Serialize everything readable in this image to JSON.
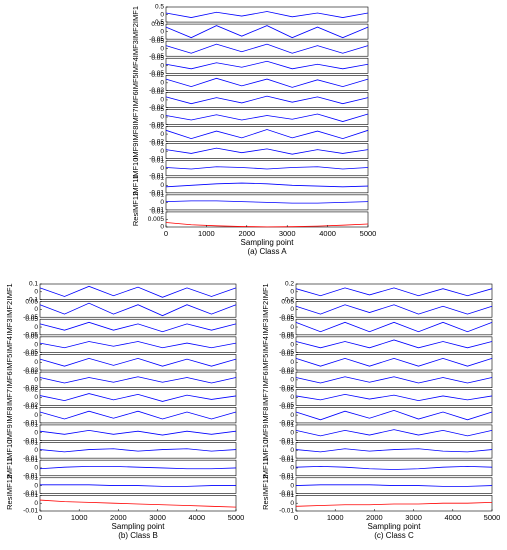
{
  "chart_data": [
    {
      "type": "line",
      "xlabel": "Sampling point",
      "caption": "(a) Class A",
      "x": [
        0,
        625,
        1250,
        1875,
        2500,
        3125,
        3750,
        4375,
        5000
      ],
      "xlim": [
        0,
        5000
      ],
      "xticks": [
        0,
        1000,
        2000,
        3000,
        4000,
        5000
      ],
      "series": [
        {
          "name": "IMF1",
          "color": "#0000ff",
          "ylim": [
            -0.5,
            0.5
          ],
          "yticks": [
            -0.5,
            0,
            0.5
          ],
          "values": [
            0.1,
            -0.2,
            0.15,
            -0.1,
            0.2,
            -0.15,
            0.1,
            -0.2,
            0.1
          ]
        },
        {
          "name": "IMF2",
          "color": "#0000ff",
          "ylim": [
            -0.05,
            0.05
          ],
          "yticks": [
            -0.05,
            0,
            0.05
          ],
          "values": [
            0.03,
            -0.04,
            0.04,
            -0.03,
            0.04,
            -0.04,
            0.03,
            -0.04,
            0.03
          ]
        },
        {
          "name": "IMF3",
          "color": "#0000ff",
          "ylim": [
            -0.05,
            0.05
          ],
          "yticks": [
            -0.05,
            0,
            0.05
          ],
          "values": [
            0.02,
            -0.03,
            0.03,
            -0.02,
            0.03,
            -0.03,
            0.02,
            -0.03,
            0.02
          ]
        },
        {
          "name": "IMF4",
          "color": "#0000ff",
          "ylim": [
            -0.05,
            0.05
          ],
          "yticks": [
            -0.05,
            0,
            0.05
          ],
          "values": [
            0.01,
            -0.02,
            0.02,
            -0.01,
            0.03,
            -0.02,
            0.01,
            -0.02,
            0.01
          ]
        },
        {
          "name": "IMF5",
          "color": "#0000ff",
          "ylim": [
            -0.02,
            0.02
          ],
          "yticks": [
            -0.02,
            0,
            0.02
          ],
          "values": [
            0.01,
            -0.01,
            0.012,
            -0.008,
            0.01,
            -0.012,
            0.008,
            -0.01,
            0.01
          ]
        },
        {
          "name": "IMF6",
          "color": "#0000ff",
          "ylim": [
            -0.02,
            0.02
          ],
          "yticks": [
            -0.02,
            0,
            0.02
          ],
          "values": [
            0.008,
            -0.01,
            0.006,
            -0.008,
            0.01,
            -0.006,
            0.008,
            -0.01,
            0.006
          ]
        },
        {
          "name": "IMF7",
          "color": "#0000ff",
          "ylim": [
            -0.05,
            0.05
          ],
          "yticks": [
            -0.05,
            0,
            0.05
          ],
          "values": [
            0.01,
            -0.02,
            0.015,
            -0.02,
            0.01,
            -0.015,
            0.02,
            -0.03,
            0.02
          ]
        },
        {
          "name": "IMF8",
          "color": "#0000ff",
          "ylim": [
            -0.02,
            0.02
          ],
          "yticks": [
            -0.02,
            0,
            0.02
          ],
          "values": [
            0.01,
            -0.012,
            0.008,
            -0.01,
            0.012,
            -0.01,
            0.008,
            -0.012,
            0.01
          ]
        },
        {
          "name": "IMF9",
          "color": "#0000ff",
          "ylim": [
            -0.01,
            0.01
          ],
          "yticks": [
            -0.01,
            0,
            0.01
          ],
          "values": [
            0.002,
            -0.003,
            0.004,
            -0.002,
            0.003,
            -0.004,
            0.002,
            -0.003,
            0.002
          ]
        },
        {
          "name": "IMF10",
          "color": "#0000ff",
          "ylim": [
            -0.01,
            0.01
          ],
          "yticks": [
            -0.01,
            0,
            0.01
          ],
          "values": [
            0.001,
            -0.001,
            0.002,
            0.001,
            -0.001,
            0.001,
            0.002,
            -0.001,
            0.001
          ]
        },
        {
          "name": "IMF11",
          "color": "#0000ff",
          "ylim": [
            -0.01,
            0.01
          ],
          "yticks": [
            -0.01,
            0,
            0.01
          ],
          "values": [
            -0.002,
            0,
            0.002,
            0.003,
            0.002,
            0,
            -0.001,
            -0.002,
            -0.001
          ]
        },
        {
          "name": "IMF12",
          "color": "#0000ff",
          "ylim": [
            -0.01,
            0.01
          ],
          "yticks": [
            -0.01,
            0,
            0.01
          ],
          "values": [
            0.001,
            0.002,
            0.002,
            0.001,
            0,
            -0.001,
            -0.001,
            0,
            0.001
          ]
        },
        {
          "name": "Res",
          "color": "#ff0000",
          "ylim": [
            0,
            0.01
          ],
          "yticks": [
            0,
            0.005,
            0.01
          ],
          "values": [
            0.003,
            0.0015,
            0.0008,
            0.0003,
            0.0001,
            0.0002,
            0.0006,
            0.0012,
            0.002
          ]
        }
      ]
    },
    {
      "type": "line",
      "xlabel": "Sampling point",
      "caption": "(b) Class B",
      "x": [
        0,
        625,
        1250,
        1875,
        2500,
        3125,
        3750,
        4375,
        5000
      ],
      "xlim": [
        0,
        5000
      ],
      "xticks": [
        0,
        1000,
        2000,
        3000,
        4000,
        5000
      ],
      "series": [
        {
          "name": "IMF1",
          "color": "#0000ff",
          "ylim": [
            -0.1,
            0.1
          ],
          "yticks": [
            -0.1,
            0,
            0.1
          ],
          "values": [
            0.05,
            -0.06,
            0.07,
            -0.05,
            0.06,
            -0.07,
            0.05,
            -0.06,
            0.05
          ]
        },
        {
          "name": "IMF2",
          "color": "#0000ff",
          "ylim": [
            -0.05,
            0.05
          ],
          "yticks": [
            -0.05,
            0,
            0.05
          ],
          "values": [
            0.03,
            -0.03,
            0.04,
            -0.03,
            0.03,
            -0.04,
            0.03,
            -0.03,
            0.03
          ]
        },
        {
          "name": "IMF3",
          "color": "#0000ff",
          "ylim": [
            -0.05,
            0.05
          ],
          "yticks": [
            -0.05,
            0,
            0.05
          ],
          "values": [
            0.02,
            -0.02,
            0.03,
            -0.02,
            0.02,
            -0.03,
            0.02,
            -0.02,
            0.02
          ]
        },
        {
          "name": "IMF4",
          "color": "#0000ff",
          "ylim": [
            -0.05,
            0.05
          ],
          "yticks": [
            -0.05,
            0,
            0.05
          ],
          "values": [
            0.01,
            -0.02,
            0.02,
            -0.01,
            0.02,
            -0.02,
            0.01,
            -0.02,
            0.01
          ]
        },
        {
          "name": "IMF5",
          "color": "#0000ff",
          "ylim": [
            -0.02,
            0.02
          ],
          "yticks": [
            -0.02,
            0,
            0.02
          ],
          "values": [
            0.008,
            -0.01,
            0.01,
            -0.008,
            0.01,
            -0.01,
            0.008,
            -0.01,
            0.008
          ]
        },
        {
          "name": "IMF6",
          "color": "#0000ff",
          "ylim": [
            -0.02,
            0.02
          ],
          "yticks": [
            -0.02,
            0,
            0.02
          ],
          "values": [
            0.006,
            -0.008,
            0.006,
            -0.006,
            0.008,
            -0.006,
            0.006,
            -0.008,
            0.006
          ]
        },
        {
          "name": "IMF7",
          "color": "#0000ff",
          "ylim": [
            -0.02,
            0.02
          ],
          "yticks": [
            -0.02,
            0,
            0.02
          ],
          "values": [
            0.005,
            -0.008,
            0.01,
            -0.006,
            0.008,
            -0.01,
            0.006,
            -0.005,
            0.004
          ]
        },
        {
          "name": "IMF8",
          "color": "#0000ff",
          "ylim": [
            -0.01,
            0.01
          ],
          "yticks": [
            -0.01,
            0,
            0.01
          ],
          "values": [
            0.004,
            -0.005,
            0.005,
            -0.004,
            0.005,
            -0.005,
            0.004,
            -0.005,
            0.004
          ]
        },
        {
          "name": "IMF9",
          "color": "#0000ff",
          "ylim": [
            -0.01,
            0.01
          ],
          "yticks": [
            -0.01,
            0,
            0.01
          ],
          "values": [
            0.002,
            -0.002,
            0.003,
            -0.002,
            0.002,
            -0.003,
            0.002,
            -0.002,
            0.002
          ]
        },
        {
          "name": "IMF10",
          "color": "#0000ff",
          "ylim": [
            -0.01,
            0.01
          ],
          "yticks": [
            -0.01,
            0,
            0.01
          ],
          "values": [
            0.001,
            -0.002,
            0.001,
            0.002,
            -0.001,
            0.001,
            0.002,
            -0.001,
            0.001
          ]
        },
        {
          "name": "IMF11",
          "color": "#0000ff",
          "ylim": [
            -0.01,
            0.01
          ],
          "yticks": [
            -0.01,
            0,
            0.01
          ],
          "values": [
            -0.001,
            0.001,
            0.002,
            0.002,
            0.001,
            0,
            -0.001,
            -0.001,
            0
          ]
        },
        {
          "name": "IMF12",
          "color": "#0000ff",
          "ylim": [
            -0.01,
            0.01
          ],
          "yticks": [
            -0.01,
            0,
            0.01
          ],
          "values": [
            0.001,
            0.001,
            0.001,
            0,
            0,
            -0.001,
            -0.001,
            0,
            0
          ]
        },
        {
          "name": "Res",
          "color": "#ff0000",
          "ylim": [
            -0.01,
            0.01
          ],
          "yticks": [
            -0.01,
            0,
            0.01
          ],
          "values": [
            0.004,
            0.002,
            0.001,
            0,
            -0.001,
            -0.002,
            -0.003,
            -0.004,
            -0.005
          ]
        }
      ]
    },
    {
      "type": "line",
      "xlabel": "Sampling point",
      "caption": "(c) Class C",
      "x": [
        0,
        625,
        1250,
        1875,
        2500,
        3125,
        3750,
        4375,
        5000
      ],
      "xlim": [
        0,
        5000
      ],
      "xticks": [
        0,
        1000,
        2000,
        3000,
        4000,
        5000
      ],
      "series": [
        {
          "name": "IMF1",
          "color": "#0000ff",
          "ylim": [
            -0.2,
            0.2
          ],
          "yticks": [
            -0.2,
            0,
            0.2
          ],
          "values": [
            0.08,
            -0.1,
            0.1,
            -0.08,
            0.1,
            -0.1,
            0.08,
            -0.1,
            0.08
          ]
        },
        {
          "name": "IMF2",
          "color": "#0000ff",
          "ylim": [
            -0.05,
            0.05
          ],
          "yticks": [
            -0.05,
            0,
            0.05
          ],
          "values": [
            0.02,
            -0.03,
            0.03,
            -0.02,
            0.03,
            -0.03,
            0.02,
            -0.03,
            0.02
          ]
        },
        {
          "name": "IMF3",
          "color": "#0000ff",
          "ylim": [
            -0.05,
            0.05
          ],
          "yticks": [
            -0.05,
            0,
            0.05
          ],
          "values": [
            0.03,
            -0.03,
            0.03,
            -0.03,
            0.03,
            -0.03,
            0.03,
            -0.03,
            0.03
          ]
        },
        {
          "name": "IMF4",
          "color": "#0000ff",
          "ylim": [
            -0.05,
            0.05
          ],
          "yticks": [
            -0.05,
            0,
            0.05
          ],
          "values": [
            0.02,
            -0.02,
            0.02,
            -0.02,
            0.03,
            -0.02,
            0.02,
            -0.02,
            0.02
          ]
        },
        {
          "name": "IMF5",
          "color": "#0000ff",
          "ylim": [
            -0.02,
            0.02
          ],
          "yticks": [
            -0.02,
            0,
            0.02
          ],
          "values": [
            0.01,
            -0.01,
            0.01,
            -0.01,
            0.01,
            -0.01,
            0.01,
            -0.01,
            0.01
          ]
        },
        {
          "name": "IMF6",
          "color": "#0000ff",
          "ylim": [
            -0.02,
            0.02
          ],
          "yticks": [
            -0.02,
            0,
            0.02
          ],
          "values": [
            0.006,
            -0.008,
            0.008,
            -0.006,
            0.008,
            -0.008,
            0.006,
            -0.008,
            0.006
          ]
        },
        {
          "name": "IMF7",
          "color": "#0000ff",
          "ylim": [
            -0.05,
            0.05
          ],
          "yticks": [
            -0.05,
            0,
            0.05
          ],
          "values": [
            0.01,
            -0.015,
            0.02,
            -0.01,
            0.015,
            -0.02,
            0.01,
            -0.015,
            0.01
          ]
        },
        {
          "name": "IMF8",
          "color": "#0000ff",
          "ylim": [
            -0.02,
            0.02
          ],
          "yticks": [
            -0.02,
            0,
            0.02
          ],
          "values": [
            0.008,
            -0.012,
            0.01,
            -0.008,
            0.012,
            -0.01,
            0.008,
            -0.012,
            0.008
          ]
        },
        {
          "name": "IMF9",
          "color": "#0000ff",
          "ylim": [
            -0.01,
            0.01
          ],
          "yticks": [
            -0.01,
            0,
            0.01
          ],
          "values": [
            0.003,
            -0.004,
            0.003,
            -0.003,
            0.004,
            -0.003,
            0.003,
            -0.004,
            0.003
          ]
        },
        {
          "name": "IMF10",
          "color": "#0000ff",
          "ylim": [
            -0.01,
            0.01
          ],
          "yticks": [
            -0.01,
            0,
            0.01
          ],
          "values": [
            0.001,
            -0.002,
            0.002,
            -0.001,
            0.001,
            0.002,
            -0.001,
            -0.002,
            0.001
          ]
        },
        {
          "name": "IMF11",
          "color": "#0000ff",
          "ylim": [
            -0.01,
            0.01
          ],
          "yticks": [
            -0.01,
            0,
            0.01
          ],
          "values": [
            0.001,
            0.002,
            0.001,
            -0.001,
            -0.002,
            -0.001,
            0.001,
            0.002,
            0.001
          ]
        },
        {
          "name": "IMF12",
          "color": "#0000ff",
          "ylim": [
            -0.01,
            0.01
          ],
          "yticks": [
            -0.01,
            0,
            0.01
          ],
          "values": [
            0,
            0.001,
            0.001,
            0.001,
            0,
            0,
            -0.001,
            -0.001,
            0
          ]
        },
        {
          "name": "Res",
          "color": "#ff0000",
          "ylim": [
            -0.01,
            0.01
          ],
          "yticks": [
            -0.01,
            0,
            0.01
          ],
          "values": [
            -0.004,
            -0.003,
            -0.002,
            -0.002,
            -0.001,
            -0.001,
            0,
            0,
            0.001
          ]
        }
      ]
    }
  ]
}
